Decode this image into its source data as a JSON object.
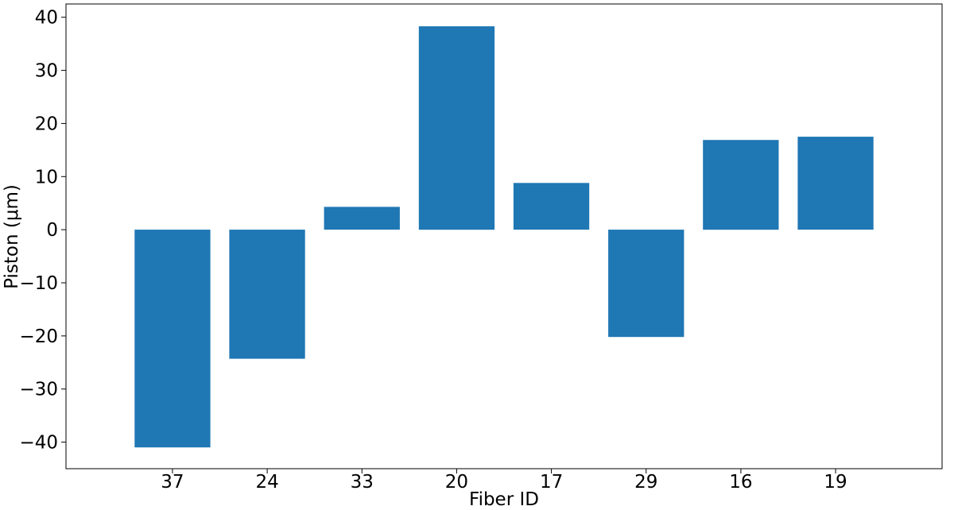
{
  "chart_data": {
    "type": "bar",
    "categories": [
      "37",
      "24",
      "33",
      "20",
      "17",
      "29",
      "16",
      "19"
    ],
    "values": [
      -41.0,
      -24.3,
      4.3,
      38.3,
      8.8,
      -20.2,
      16.9,
      17.5
    ],
    "title": "",
    "xlabel": "Fiber ID",
    "ylabel": "Piston (μm)",
    "ylim": [
      -45,
      42.5
    ],
    "yticks": [
      -40,
      -30,
      -20,
      -10,
      0,
      10,
      20,
      30,
      40
    ],
    "ytick_labels": [
      "−40",
      "−30",
      "−20",
      "−10",
      "0",
      "10",
      "20",
      "30",
      "40"
    ],
    "grid": false,
    "bar_color": "#1f77b4"
  }
}
